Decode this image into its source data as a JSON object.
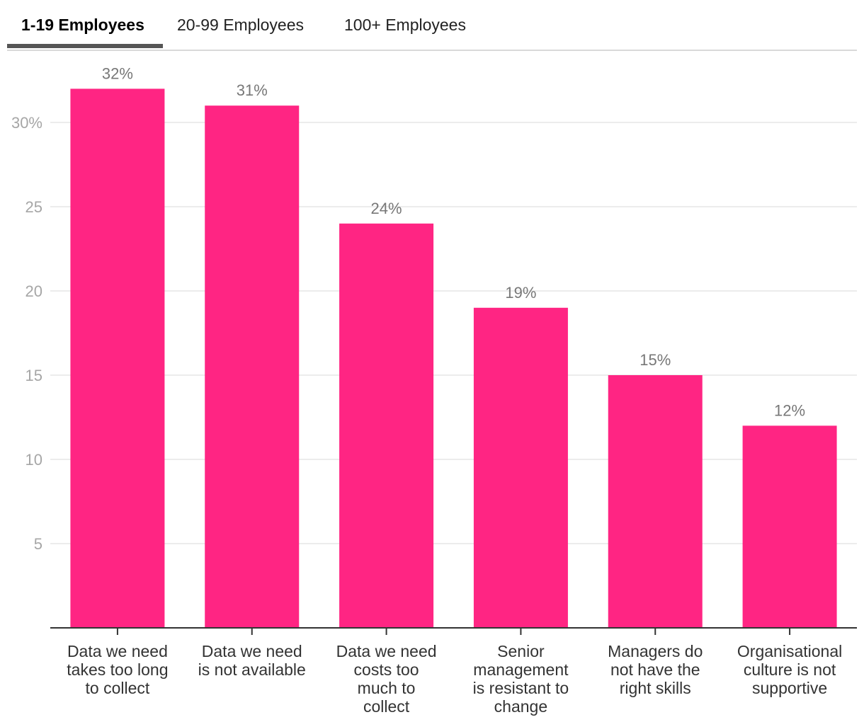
{
  "tabs": [
    {
      "label": "1-19 Employees",
      "active": true
    },
    {
      "label": "20-99 Employees",
      "active": false
    },
    {
      "label": "100+ Employees",
      "active": false
    }
  ],
  "colors": {
    "bar": "#ff2583",
    "grid": "#e6e6e6",
    "axis": "#333333"
  },
  "chart_data": {
    "type": "bar",
    "title": "",
    "xlabel": "",
    "ylabel": "",
    "ylim": [
      0,
      32
    ],
    "yticks": [
      5,
      10,
      15,
      20,
      25,
      30
    ],
    "ytick_labels": [
      "5",
      "10",
      "15",
      "20",
      "25",
      "30%"
    ],
    "categories": [
      [
        "Data we need",
        "takes too long",
        "to collect"
      ],
      [
        "Data we need",
        "is not available"
      ],
      [
        "Data we need",
        "costs too",
        "much to",
        "collect"
      ],
      [
        "Senior",
        "management",
        "is resistant to",
        "change"
      ],
      [
        "Managers do",
        "not have the",
        "right skills"
      ],
      [
        "Organisational",
        "culture is not",
        "supportive"
      ]
    ],
    "values": [
      32,
      31,
      24,
      19,
      15,
      12
    ],
    "value_labels": [
      "32%",
      "31%",
      "24%",
      "19%",
      "15%",
      "12%"
    ]
  }
}
